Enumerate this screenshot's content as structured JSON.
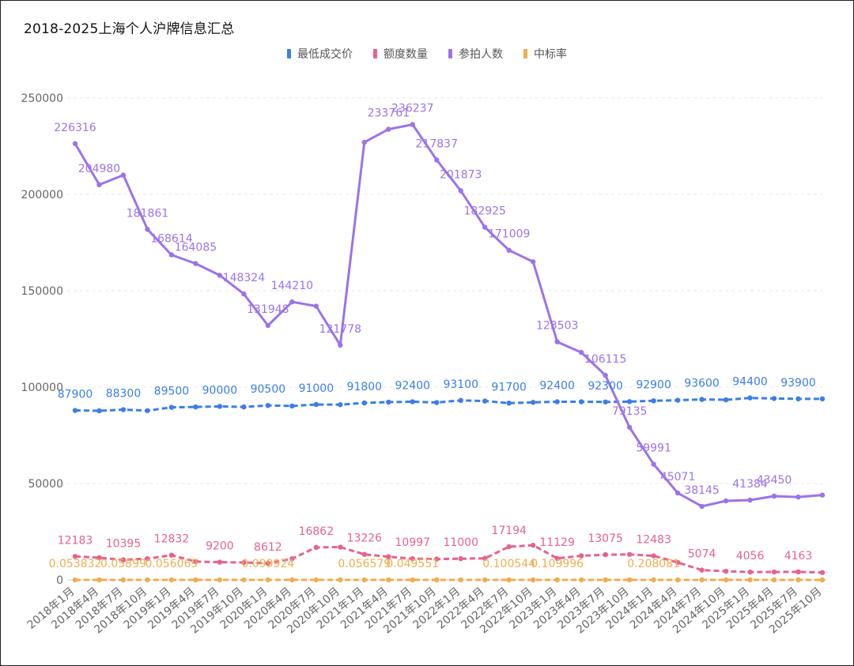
{
  "chart_data": {
    "type": "line",
    "title": "2018-2025上海个人沪牌信息汇总",
    "ylim": [
      0,
      250000
    ],
    "y_ticks": [
      0,
      50000,
      100000,
      150000,
      200000,
      250000
    ],
    "grid": "horizontal-dashed",
    "legend_position": "top-center",
    "categories": [
      "2018年1月",
      "2018年4月",
      "2018年7月",
      "2018年10月",
      "2019年1月",
      "2019年4月",
      "2019年7月",
      "2019年10月",
      "2020年1月",
      "2020年4月",
      "2020年7月",
      "2020年10月",
      "2021年1月",
      "2021年4月",
      "2021年7月",
      "2021年10月",
      "2022年1月",
      "2022年4月",
      "2022年7月",
      "2022年10月",
      "2023年1月",
      "2023年4月",
      "2023年7月",
      "2023年10月",
      "2024年1月",
      "2024年4月",
      "2024年7月",
      "2024年10月",
      "2025年1月",
      "2025年4月",
      "2025年7月",
      "2025年10月"
    ],
    "series": [
      {
        "name": "最低成交价",
        "color": "#3a7ee6",
        "values": [
          87900,
          87700,
          88300,
          87800,
          89500,
          89700,
          90000,
          89700,
          90500,
          90200,
          91000,
          90900,
          91800,
          92200,
          92400,
          92000,
          93100,
          92800,
          91700,
          92100,
          92400,
          92400,
          92300,
          92500,
          92900,
          93200,
          93600,
          93400,
          94400,
          94100,
          93900,
          93900
        ],
        "labels": [
          "87900",
          "",
          "88300",
          "",
          "89500",
          "",
          "90000",
          "",
          "90500",
          "",
          "91000",
          "",
          "91800",
          "",
          "92400",
          "",
          "93100",
          "",
          "91700",
          "",
          "92400",
          "",
          "92300",
          "",
          "92900",
          "",
          "93600",
          "",
          "94400",
          "",
          "93900",
          ""
        ]
      },
      {
        "name": "额度数量",
        "color": "#e6628e",
        "values": [
          12183,
          11500,
          10395,
          11000,
          12832,
          9500,
          9200,
          9000,
          8612,
          11000,
          16862,
          17000,
          13226,
          12000,
          10997,
          10800,
          11000,
          11200,
          17194,
          18000,
          11129,
          12500,
          13075,
          13200,
          12483,
          9000,
          5074,
          4500,
          4056,
          4100,
          4163,
          3800
        ],
        "labels": [
          "12183",
          "",
          "10395",
          "",
          "12832",
          "",
          "9200",
          "",
          "8612",
          "",
          "16862",
          "",
          "13226",
          "",
          "10997",
          "",
          "11000",
          "",
          "17194",
          "",
          "11129",
          "",
          "13075",
          "",
          "12483",
          "",
          "5074",
          "",
          "4056",
          "",
          "4163",
          ""
        ]
      },
      {
        "name": "参拍人数",
        "color": "#9b73ea",
        "values": [
          226316,
          204980,
          210000,
          181861,
          168614,
          164085,
          158000,
          148324,
          131948,
          144210,
          142000,
          121778,
          227000,
          233761,
          236237,
          217837,
          201873,
          182925,
          171009,
          165000,
          123503,
          118000,
          106115,
          79135,
          59991,
          45071,
          38145,
          41000,
          41384,
          43450,
          43000,
          44000
        ],
        "labels": [
          "226316",
          "204980",
          "",
          "181861",
          "168614",
          "164085",
          "",
          "148324",
          "131948",
          "144210",
          "",
          "121778",
          "",
          "233761",
          "236237",
          "217837",
          "201873",
          "182925",
          "171009",
          "",
          "123503",
          "",
          "106115",
          "79135",
          "59991",
          "45071",
          "38145",
          "",
          "41384",
          "43450",
          "",
          ""
        ]
      },
      {
        "name": "中标率",
        "color": "#f0ad4e",
        "values": [
          0.053832,
          0.05,
          0.05899,
          0.06,
          0.056069,
          0.055,
          0.056069,
          0.06,
          0.099924,
          0.1,
          0.1,
          0.11,
          0.056579,
          0.05,
          0.049551,
          0.05,
          0.06,
          0.07,
          0.100544,
          0.11,
          0.109996,
          0.11,
          0.12,
          0.15,
          0.208081,
          0.15,
          0.12,
          0.1,
          0.1,
          0.1,
          0.1,
          0.09
        ],
        "labels": [
          "0.053832",
          "",
          "0.05899",
          "",
          "0.056069",
          "",
          "",
          "",
          "0.099924",
          "",
          "",
          "",
          "0.056579",
          "",
          "0.049551",
          "",
          "",
          "",
          "0.100544",
          "",
          "0.109996",
          "",
          "",
          "",
          "0.208081",
          "",
          "",
          "",
          "",
          "",
          "",
          ""
        ]
      }
    ]
  }
}
